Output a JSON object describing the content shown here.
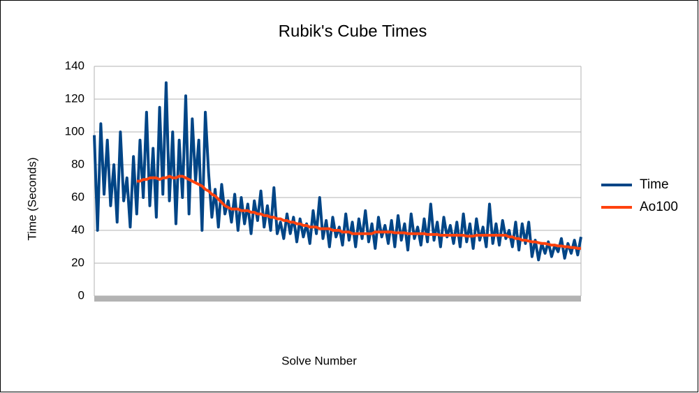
{
  "chart_data": {
    "type": "line",
    "title": "Rubik's Cube Times",
    "x_label": "Solve Number",
    "y_label": "Time (Seconds)",
    "categories": [
      null,
      null,
      null,
      null,
      null,
      null,
      null,
      null,
      null,
      null,
      null,
      null,
      null,
      null,
      null,
      null,
      null,
      null,
      null,
      null,
      null,
      null,
      null,
      null,
      null,
      null,
      null,
      null,
      null,
      null,
      null,
      null,
      null,
      null,
      null,
      null,
      null,
      null,
      null,
      null,
      null,
      null,
      null,
      null,
      null,
      null,
      null,
      null,
      null,
      null,
      null,
      null,
      null,
      null,
      null,
      null,
      null,
      null,
      null,
      null,
      null,
      null,
      null,
      null,
      null,
      null,
      null,
      null,
      null,
      null,
      null,
      null,
      null,
      null,
      null,
      null,
      null,
      null,
      null,
      null,
      null,
      null,
      null,
      null,
      null,
      null,
      null,
      null,
      null,
      null,
      null,
      null,
      null,
      null,
      null,
      null,
      null,
      null,
      null,
      null,
      null,
      null,
      null,
      null,
      null,
      null,
      null,
      null,
      null,
      null,
      null,
      null,
      null,
      null,
      null,
      null,
      null,
      null,
      null,
      null,
      null,
      null,
      null,
      null,
      null,
      null,
      null,
      null,
      null,
      null,
      null,
      null,
      null,
      null,
      null,
      null,
      null,
      null,
      null,
      null,
      null,
      null,
      null,
      null,
      null,
      null,
      null,
      null,
      null,
      null
    ],
    "series": [
      {
        "name": "Time",
        "color": "#004586",
        "values": [
          98,
          40,
          105,
          62,
          95,
          55,
          80,
          45,
          100,
          58,
          72,
          42,
          85,
          50,
          95,
          60,
          112,
          55,
          90,
          48,
          115,
          62,
          130,
          58,
          100,
          44,
          95,
          60,
          122,
          50,
          108,
          70,
          95,
          40,
          112,
          75,
          48,
          65,
          42,
          68,
          50,
          58,
          45,
          62,
          40,
          60,
          44,
          56,
          38,
          58,
          46,
          64,
          42,
          55,
          40,
          66,
          38,
          45,
          35,
          50,
          38,
          48,
          33,
          47,
          36,
          44,
          32,
          52,
          38,
          60,
          35,
          46,
          30,
          48,
          36,
          42,
          31,
          50,
          34,
          45,
          30,
          47,
          35,
          52,
          33,
          44,
          29,
          48,
          36,
          43,
          32,
          46,
          30,
          49,
          34,
          44,
          28,
          50,
          35,
          42,
          31,
          47,
          33,
          56,
          34,
          45,
          30,
          48,
          36,
          43,
          32,
          45,
          30,
          50,
          33,
          44,
          29,
          47,
          34,
          42,
          30,
          56,
          32,
          44,
          31,
          46,
          35,
          40,
          30,
          45,
          28,
          44,
          32,
          45,
          24,
          34,
          22,
          32,
          26,
          33,
          24,
          31,
          27,
          35,
          23,
          32,
          26,
          34,
          25,
          36
        ]
      },
      {
        "name": "Ao100",
        "color": "#ff420e",
        "values": [
          null,
          null,
          null,
          null,
          null,
          null,
          null,
          null,
          null,
          null,
          null,
          null,
          null,
          70,
          70,
          71,
          71,
          72,
          72,
          72,
          71,
          72,
          72,
          73,
          72,
          72,
          73,
          73,
          72,
          71,
          70,
          69,
          68,
          67,
          65,
          64,
          62,
          61,
          59,
          57,
          55,
          54,
          53,
          53,
          53,
          52,
          52,
          52,
          51,
          51,
          50,
          50,
          49,
          49,
          48,
          48,
          47,
          47,
          46,
          46,
          45,
          45,
          44,
          44,
          43,
          43,
          42,
          42,
          42,
          41,
          41,
          41,
          41,
          40,
          40,
          40,
          39,
          39,
          39,
          38,
          38,
          38,
          38,
          38,
          38,
          38,
          39,
          39,
          39,
          39,
          39,
          39,
          38.5,
          38.5,
          38.5,
          38.5,
          38,
          38,
          38,
          38,
          38,
          38,
          37.5,
          37.5,
          37.5,
          37.5,
          37,
          37,
          37,
          37,
          37,
          37,
          37,
          37,
          36.5,
          36.5,
          36.5,
          37,
          37,
          37,
          37,
          37,
          37,
          37,
          37,
          37,
          37,
          36,
          36,
          35,
          35,
          34,
          34,
          33.5,
          33,
          33,
          32.5,
          32,
          32,
          31.5,
          31,
          31,
          30.5,
          30.5,
          30,
          30,
          29.5,
          29.5,
          29,
          29
        ]
      }
    ],
    "ylim": [
      0,
      140
    ],
    "yticks": [
      0,
      20,
      40,
      60,
      80,
      100,
      120,
      140
    ],
    "grid": true,
    "legend": "right"
  }
}
